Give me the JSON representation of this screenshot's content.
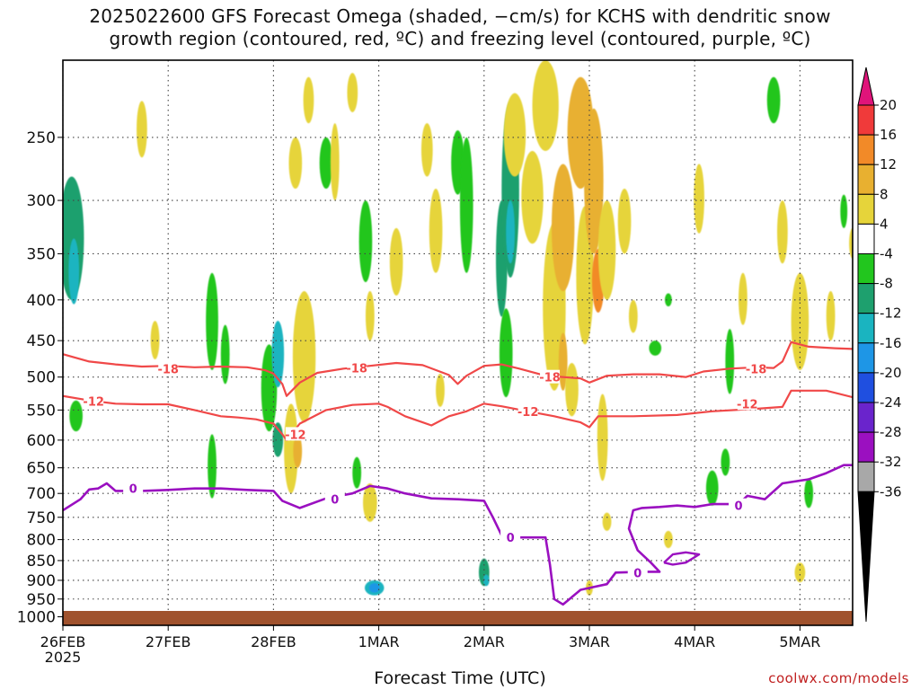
{
  "title": {
    "line1": "2025022600 GFS Forecast Omega (shaded, −cm/s) for KCHS with dendritic snow",
    "line2": "growth region (contoured, red, ºC) and freezing level (contoured, purple, ºC)"
  },
  "credit": "coolwx.com/models",
  "chart_data": {
    "type": "heatmap",
    "xlabel": "Forecast Time (UTC)",
    "ylabel": "",
    "x_ticks": [
      {
        "t": 0,
        "label": "26FEB",
        "sub": "2025"
      },
      {
        "t": 24,
        "label": "27FEB",
        "sub": ""
      },
      {
        "t": 48,
        "label": "28FEB",
        "sub": ""
      },
      {
        "t": 72,
        "label": "1MAR",
        "sub": ""
      },
      {
        "t": 96,
        "label": "2MAR",
        "sub": ""
      },
      {
        "t": 120,
        "label": "3MAR",
        "sub": ""
      },
      {
        "t": 144,
        "label": "4MAR",
        "sub": ""
      },
      {
        "t": 168,
        "label": "5MAR",
        "sub": ""
      }
    ],
    "x_range_hours": [
      0,
      180
    ],
    "y_ticks": [
      250,
      300,
      350,
      400,
      450,
      500,
      550,
      600,
      650,
      700,
      750,
      800,
      850,
      900,
      950,
      1000
    ],
    "y_range_hpa": [
      200,
      1025
    ],
    "grid": true,
    "colorbar": {
      "labels": [
        "20",
        "16",
        "12",
        "8",
        "4",
        "-4",
        "-8",
        "-12",
        "-16",
        "-20",
        "-24",
        "-28",
        "-32",
        "-36"
      ],
      "colors": [
        "#f03a3a",
        "#f28a28",
        "#e8b030",
        "#e6d43a",
        "#ffffff",
        "#22c61e",
        "#1ea06e",
        "#1ab4c0",
        "#1e96e6",
        "#1f4fe0",
        "#6a24cc",
        "#9b10c0",
        "#a8a8a8"
      ],
      "top_extend_color": "#e0147a",
      "bottom_extend_color": "#000000"
    },
    "contours": {
      "dgz_minus18": {
        "label": "-18",
        "color": "#f04848",
        "points": [
          [
            0,
            468
          ],
          [
            6,
            478
          ],
          [
            12,
            482
          ],
          [
            18,
            485
          ],
          [
            24,
            484
          ],
          [
            30,
            486
          ],
          [
            36,
            485
          ],
          [
            42,
            486
          ],
          [
            46,
            490
          ],
          [
            48,
            495
          ],
          [
            50,
            510
          ],
          [
            51,
            528
          ],
          [
            54,
            508
          ],
          [
            58,
            494
          ],
          [
            64,
            488
          ],
          [
            70,
            484
          ],
          [
            76,
            480
          ],
          [
            82,
            483
          ],
          [
            88,
            497
          ],
          [
            90,
            510
          ],
          [
            92,
            498
          ],
          [
            96,
            484
          ],
          [
            100,
            482
          ],
          [
            104,
            488
          ],
          [
            110,
            498
          ],
          [
            114,
            500
          ],
          [
            118,
            502
          ],
          [
            120,
            508
          ],
          [
            124,
            498
          ],
          [
            130,
            496
          ],
          [
            136,
            496
          ],
          [
            142,
            500
          ],
          [
            146,
            492
          ],
          [
            152,
            488
          ],
          [
            158,
            486
          ],
          [
            162,
            487
          ],
          [
            164,
            478
          ],
          [
            166,
            452
          ],
          [
            170,
            458
          ],
          [
            176,
            460
          ],
          [
            180,
            461
          ]
        ],
        "label_at": [
          [
            24,
            488
          ],
          [
            67,
            487
          ],
          [
            111,
            500
          ],
          [
            158,
            488
          ]
        ]
      },
      "dgz_minus12": {
        "label": "-12",
        "color": "#f04848",
        "points": [
          [
            0,
            528
          ],
          [
            6,
            535
          ],
          [
            12,
            540
          ],
          [
            18,
            541
          ],
          [
            24,
            541
          ],
          [
            30,
            550
          ],
          [
            36,
            560
          ],
          [
            40,
            562
          ],
          [
            44,
            565
          ],
          [
            48,
            572
          ],
          [
            50,
            590
          ],
          [
            51,
            600
          ],
          [
            54,
            572
          ],
          [
            60,
            550
          ],
          [
            66,
            542
          ],
          [
            72,
            540
          ],
          [
            74,
            545
          ],
          [
            78,
            560
          ],
          [
            82,
            570
          ],
          [
            84,
            575
          ],
          [
            88,
            560
          ],
          [
            92,
            552
          ],
          [
            96,
            540
          ],
          [
            100,
            544
          ],
          [
            106,
            552
          ],
          [
            112,
            560
          ],
          [
            118,
            570
          ],
          [
            120,
            578
          ],
          [
            122,
            560
          ],
          [
            130,
            560
          ],
          [
            140,
            558
          ],
          [
            148,
            552
          ],
          [
            158,
            548
          ],
          [
            164,
            545
          ],
          [
            166,
            520
          ],
          [
            174,
            520
          ],
          [
            180,
            530
          ]
        ],
        "label_at": [
          [
            7,
            536
          ],
          [
            53,
            590
          ],
          [
            106,
            552
          ],
          [
            156,
            540
          ]
        ]
      },
      "freezing_0c": {
        "label": "0",
        "color": "#9a10c0",
        "points": [
          [
            0,
            735
          ],
          [
            4,
            712
          ],
          [
            6,
            692
          ],
          [
            8,
            690
          ],
          [
            10,
            680
          ],
          [
            12,
            695
          ],
          [
            18,
            695
          ],
          [
            24,
            693
          ],
          [
            30,
            690
          ],
          [
            36,
            690
          ],
          [
            42,
            693
          ],
          [
            48,
            695
          ],
          [
            50,
            715
          ],
          [
            54,
            730
          ],
          [
            60,
            710
          ],
          [
            66,
            700
          ],
          [
            70,
            685
          ],
          [
            74,
            690
          ],
          [
            78,
            700
          ],
          [
            84,
            710
          ],
          [
            90,
            712
          ],
          [
            96,
            715
          ],
          [
            98,
            750
          ],
          [
            100,
            790
          ],
          [
            104,
            795
          ],
          [
            108,
            795
          ],
          [
            110,
            795
          ],
          [
            111,
            860
          ],
          [
            112,
            950
          ],
          [
            114,
            965
          ],
          [
            118,
            925
          ],
          [
            120,
            920
          ],
          [
            124,
            910
          ],
          [
            126,
            880
          ],
          [
            132,
            878
          ],
          [
            136,
            878
          ],
          [
            134,
            855
          ],
          [
            131,
            825
          ],
          [
            129,
            775
          ],
          [
            130,
            735
          ],
          [
            132,
            730
          ],
          [
            136,
            728
          ],
          [
            140,
            725
          ],
          [
            144,
            728
          ],
          [
            148,
            722
          ],
          [
            154,
            722
          ],
          [
            156,
            705
          ],
          [
            160,
            712
          ],
          [
            164,
            680
          ],
          [
            170,
            672
          ],
          [
            174,
            660
          ],
          [
            178,
            645
          ],
          [
            180,
            645
          ]
        ],
        "label_at": [
          [
            16,
            690
          ],
          [
            62,
            712
          ],
          [
            102,
            795
          ],
          [
            131,
            880
          ],
          [
            154,
            725
          ]
        ]
      },
      "freezing_loop": {
        "color": "#9a10c0",
        "points": [
          [
            137,
            855
          ],
          [
            139,
            835
          ],
          [
            142,
            830
          ],
          [
            145,
            835
          ],
          [
            142,
            855
          ],
          [
            139,
            860
          ],
          [
            137,
            855
          ]
        ]
      }
    },
    "omega_blobs": [
      {
        "t": 2,
        "p": 340,
        "dt": 2.8,
        "dp": 120,
        "v": -8
      },
      {
        "t": 2.5,
        "p": 370,
        "dt": 1.2,
        "dp": 70,
        "v": -12
      },
      {
        "t": 3,
        "p": 560,
        "dt": 1.5,
        "dp": 50,
        "v": -6
      },
      {
        "t": 18,
        "p": 245,
        "dt": 1.2,
        "dp": 40,
        "v": 5
      },
      {
        "t": 21,
        "p": 450,
        "dt": 1,
        "dp": 50,
        "v": 5
      },
      {
        "t": 34,
        "p": 430,
        "dt": 1.4,
        "dp": 120,
        "v": -6
      },
      {
        "t": 34,
        "p": 650,
        "dt": 1,
        "dp": 120,
        "v": -5
      },
      {
        "t": 37,
        "p": 470,
        "dt": 1,
        "dp": 80,
        "v": -5
      },
      {
        "t": 47,
        "p": 520,
        "dt": 1.8,
        "dp": 130,
        "v": -6
      },
      {
        "t": 49,
        "p": 470,
        "dt": 1.4,
        "dp": 90,
        "v": -12
      },
      {
        "t": 49,
        "p": 600,
        "dt": 1.2,
        "dp": 60,
        "v": -10
      },
      {
        "t": 52,
        "p": 620,
        "dt": 1.6,
        "dp": 160,
        "v": 6
      },
      {
        "t": 53.5,
        "p": 620,
        "dt": 1,
        "dp": 60,
        "v": 10
      },
      {
        "t": 55,
        "p": 480,
        "dt": 2.6,
        "dp": 180,
        "v": 4
      },
      {
        "t": 56,
        "p": 225,
        "dt": 1.2,
        "dp": 30,
        "v": 5
      },
      {
        "t": 53,
        "p": 270,
        "dt": 1.5,
        "dp": 40,
        "v": 5
      },
      {
        "t": 60,
        "p": 270,
        "dt": 1.5,
        "dp": 40,
        "v": -6
      },
      {
        "t": 62,
        "p": 270,
        "dt": 1,
        "dp": 60,
        "v": 5
      },
      {
        "t": 66,
        "p": 220,
        "dt": 1.2,
        "dp": 25,
        "v": 5
      },
      {
        "t": 67,
        "p": 660,
        "dt": 1,
        "dp": 60,
        "v": -5
      },
      {
        "t": 69,
        "p": 340,
        "dt": 1.5,
        "dp": 80,
        "v": -6
      },
      {
        "t": 70,
        "p": 420,
        "dt": 1,
        "dp": 60,
        "v": 5
      },
      {
        "t": 76,
        "p": 360,
        "dt": 1.5,
        "dp": 70,
        "v": 5
      },
      {
        "t": 70,
        "p": 720,
        "dt": 1.6,
        "dp": 80,
        "v": 5
      },
      {
        "t": 71,
        "p": 920,
        "dt": 2.2,
        "dp": 40,
        "v": -12
      },
      {
        "t": 71,
        "p": 920,
        "dt": 1.2,
        "dp": 25,
        "v": -16
      },
      {
        "t": 83,
        "p": 260,
        "dt": 1.3,
        "dp": 40,
        "v": 5
      },
      {
        "t": 85,
        "p": 330,
        "dt": 1.5,
        "dp": 80,
        "v": 5
      },
      {
        "t": 86,
        "p": 520,
        "dt": 1,
        "dp": 50,
        "v": 5
      },
      {
        "t": 90,
        "p": 270,
        "dt": 1.5,
        "dp": 50,
        "v": -6
      },
      {
        "t": 92,
        "p": 310,
        "dt": 1.5,
        "dp": 120,
        "v": -6
      },
      {
        "t": 96,
        "p": 880,
        "dt": 1.2,
        "dp": 70,
        "v": -8
      },
      {
        "t": 96.5,
        "p": 900,
        "dt": 0.7,
        "dp": 30,
        "v": -12
      },
      {
        "t": 100,
        "p": 360,
        "dt": 1.3,
        "dp": 120,
        "v": -8
      },
      {
        "t": 101,
        "p": 470,
        "dt": 1.5,
        "dp": 120,
        "v": -6
      },
      {
        "t": 102,
        "p": 300,
        "dt": 2,
        "dp": 150,
        "v": -8
      },
      {
        "t": 102,
        "p": 330,
        "dt": 1,
        "dp": 60,
        "v": -12
      },
      {
        "t": 103,
        "p": 250,
        "dt": 2.5,
        "dp": 60,
        "v": 5
      },
      {
        "t": 107,
        "p": 300,
        "dt": 2.5,
        "dp": 80,
        "v": 6
      },
      {
        "t": 110,
        "p": 230,
        "dt": 3,
        "dp": 60,
        "v": 6
      },
      {
        "t": 112,
        "p": 420,
        "dt": 2.6,
        "dp": 200,
        "v": 5
      },
      {
        "t": 114,
        "p": 330,
        "dt": 2.6,
        "dp": 120,
        "v": 8
      },
      {
        "t": 114,
        "p": 480,
        "dt": 1,
        "dp": 80,
        "v": 10
      },
      {
        "t": 116,
        "p": 520,
        "dt": 1.5,
        "dp": 80,
        "v": 6
      },
      {
        "t": 118,
        "p": 250,
        "dt": 3,
        "dp": 80,
        "v": 8
      },
      {
        "t": 119,
        "p": 380,
        "dt": 2,
        "dp": 150,
        "v": 6
      },
      {
        "t": 121,
        "p": 290,
        "dt": 2.2,
        "dp": 120,
        "v": 10
      },
      {
        "t": 122,
        "p": 380,
        "dt": 1.4,
        "dp": 70,
        "v": 12
      },
      {
        "t": 123,
        "p": 600,
        "dt": 1.2,
        "dp": 150,
        "v": 6
      },
      {
        "t": 120,
        "p": 920,
        "dt": 0.8,
        "dp": 40,
        "v": 5
      },
      {
        "t": 124,
        "p": 350,
        "dt": 2,
        "dp": 100,
        "v": 6
      },
      {
        "t": 124,
        "p": 760,
        "dt": 1,
        "dp": 40,
        "v": 5
      },
      {
        "t": 128,
        "p": 320,
        "dt": 1.5,
        "dp": 60,
        "v": 5
      },
      {
        "t": 130,
        "p": 420,
        "dt": 1,
        "dp": 40,
        "v": 5
      },
      {
        "t": 135,
        "p": 460,
        "dt": 1.4,
        "dp": 20,
        "v": -5
      },
      {
        "t": 138,
        "p": 400,
        "dt": 0.8,
        "dp": 15,
        "v": -5
      },
      {
        "t": 138,
        "p": 800,
        "dt": 1,
        "dp": 40,
        "v": 5
      },
      {
        "t": 145,
        "p": 300,
        "dt": 1.2,
        "dp": 60,
        "v": 5
      },
      {
        "t": 148,
        "p": 690,
        "dt": 1.4,
        "dp": 70,
        "v": -6
      },
      {
        "t": 151,
        "p": 640,
        "dt": 1,
        "dp": 50,
        "v": -5
      },
      {
        "t": 152,
        "p": 480,
        "dt": 1,
        "dp": 90,
        "v": -6
      },
      {
        "t": 155,
        "p": 400,
        "dt": 1,
        "dp": 60,
        "v": 5
      },
      {
        "t": 162,
        "p": 225,
        "dt": 1.5,
        "dp": 30,
        "v": -5
      },
      {
        "t": 164,
        "p": 330,
        "dt": 1.2,
        "dp": 60,
        "v": 5
      },
      {
        "t": 168,
        "p": 430,
        "dt": 2,
        "dp": 120,
        "v": 5
      },
      {
        "t": 170,
        "p": 700,
        "dt": 1,
        "dp": 60,
        "v": -7
      },
      {
        "t": 168,
        "p": 880,
        "dt": 1.2,
        "dp": 50,
        "v": 5
      },
      {
        "t": 175,
        "p": 420,
        "dt": 1,
        "dp": 60,
        "v": 5
      },
      {
        "t": 178,
        "p": 310,
        "dt": 0.8,
        "dp": 30,
        "v": -5
      },
      {
        "t": 180,
        "p": 340,
        "dt": 0.8,
        "dp": 30,
        "v": 5
      }
    ]
  }
}
